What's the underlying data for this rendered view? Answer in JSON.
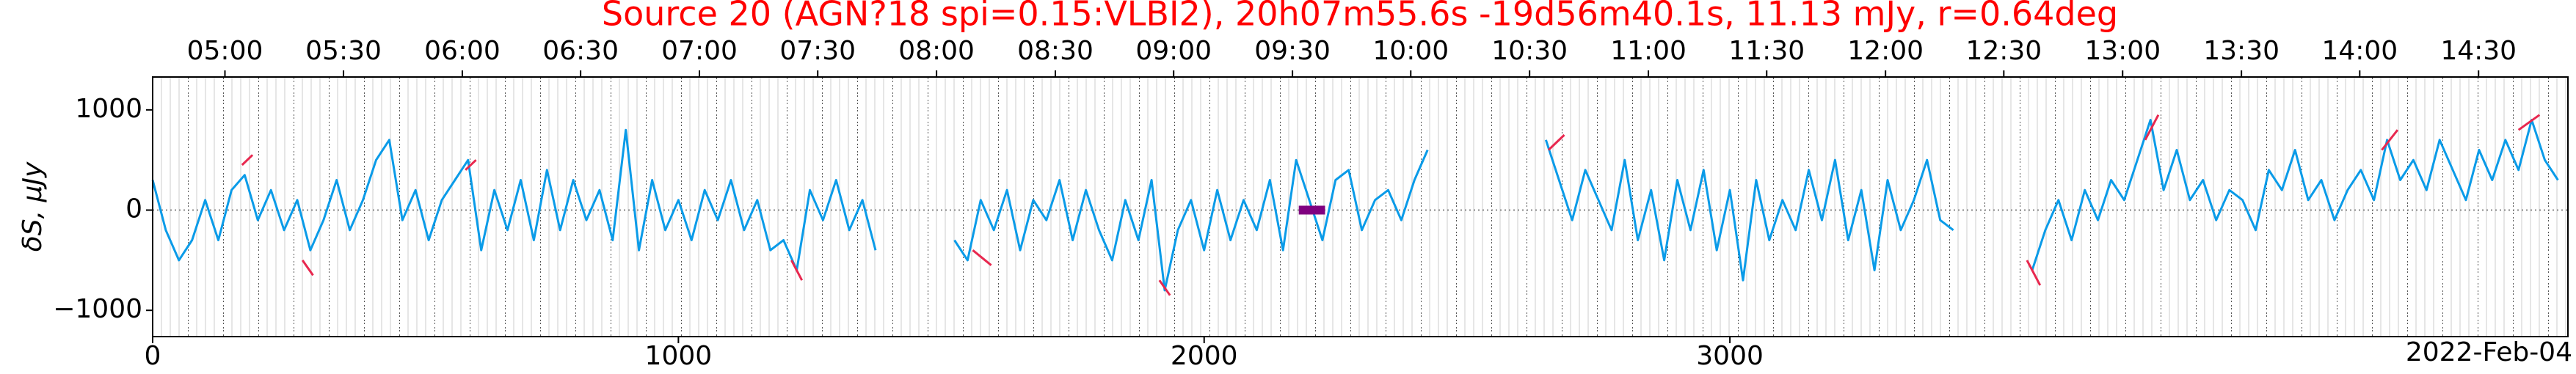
{
  "chart_data": {
    "type": "line",
    "title": "Source 20 (AGN?18 spi=0.15:VLBI2), 20h07m55.6s -19d56m40.1s, 11.13 mJy, r=0.64deg",
    "y_label": "δS, μJy",
    "date_label": "2022-Feb-04",
    "xlim": [
      0,
      4594
    ],
    "xticks": [
      0,
      1000,
      2000,
      3000
    ],
    "x2ticks": [
      {
        "value": 137.5,
        "label": "05:00"
      },
      {
        "value": 363,
        "label": "05:30"
      },
      {
        "value": 589,
        "label": "06:00"
      },
      {
        "value": 814,
        "label": "06:30"
      },
      {
        "value": 1040,
        "label": "07:00"
      },
      {
        "value": 1265,
        "label": "07:30"
      },
      {
        "value": 1491,
        "label": "08:00"
      },
      {
        "value": 1717,
        "label": "08:30"
      },
      {
        "value": 1942,
        "label": "09:00"
      },
      {
        "value": 2168,
        "label": "09:30"
      },
      {
        "value": 2393,
        "label": "10:00"
      },
      {
        "value": 2619,
        "label": "10:30"
      },
      {
        "value": 2845,
        "label": "11:00"
      },
      {
        "value": 3070,
        "label": "11:30"
      },
      {
        "value": 3296,
        "label": "12:00"
      },
      {
        "value": 3521,
        "label": "12:30"
      },
      {
        "value": 3747,
        "label": "13:00"
      },
      {
        "value": 3973,
        "label": "13:30"
      },
      {
        "value": 4198,
        "label": "14:00"
      },
      {
        "value": 4424,
        "label": "14:30"
      }
    ],
    "ylim": [
      -1262,
      1328
    ],
    "yticks": [
      {
        "value": -1000,
        "label": "−1000"
      },
      0,
      1000
    ],
    "series": [
      {
        "color": "#0a9be8",
        "x": [
          0,
          25,
          50,
          75,
          100,
          125,
          150,
          175,
          200,
          225,
          250,
          275,
          300,
          325,
          350,
          375,
          400,
          425,
          450,
          475,
          500,
          525,
          550,
          575,
          600,
          625,
          650,
          675,
          700,
          725,
          750,
          775,
          800,
          825,
          850,
          875,
          900,
          925,
          950,
          975,
          1000,
          1025,
          1050,
          1075,
          1100,
          1125,
          1150,
          1175,
          1200,
          1225,
          1250,
          1275,
          1300,
          1325,
          1350,
          1375,
          1400,
          1425,
          1450,
          1475,
          1500,
          1525,
          1550,
          1575,
          1600,
          1625,
          1650,
          1675,
          1700,
          1725,
          1750,
          1775,
          1800,
          1825,
          1850,
          1875,
          1900,
          1925,
          1950,
          1975,
          2000,
          2025,
          2050,
          2075,
          2100,
          2125,
          2150,
          2175,
          2200,
          2225,
          2250,
          2275,
          2300,
          2325,
          2350,
          2375,
          2400,
          2425,
          2450,
          2475,
          2500,
          2525,
          2550,
          2575,
          2600,
          2625,
          2650,
          2675,
          2700,
          2725,
          2750,
          2775,
          2800,
          2825,
          2850,
          2875,
          2900,
          2925,
          2950,
          2975,
          3000,
          3025,
          3050,
          3075,
          3100,
          3125,
          3150,
          3175,
          3200,
          3225,
          3250,
          3275,
          3300,
          3325,
          3350,
          3375,
          3400,
          3425,
          3450,
          3475,
          3500,
          3525,
          3550,
          3575,
          3600,
          3625,
          3650,
          3675,
          3700,
          3725,
          3750,
          3775,
          3800,
          3825,
          3850,
          3875,
          3900,
          3925,
          3950,
          3975,
          4000,
          4025,
          4050,
          4075,
          4100,
          4125,
          4150,
          4175,
          4200,
          4225,
          4250,
          4275,
          4300,
          4325,
          4350,
          4375,
          4400,
          4425,
          4450,
          4475,
          4500,
          4525,
          4550,
          4575
        ],
        "values": [
          300,
          -200,
          -500,
          -300,
          100,
          -300,
          200,
          350,
          -100,
          200,
          -200,
          100,
          -400,
          -100,
          300,
          -200,
          100,
          500,
          700,
          -100,
          200,
          -300,
          100,
          300,
          500,
          -400,
          200,
          -200,
          300,
          -300,
          400,
          -200,
          300,
          -100,
          200,
          -300,
          800,
          -400,
          300,
          -200,
          100,
          -300,
          200,
          -100,
          300,
          -200,
          100,
          -400,
          -300,
          -600,
          200,
          -100,
          300,
          -200,
          100,
          -400,
          null,
          null,
          null,
          null,
          null,
          -300,
          -500,
          100,
          -200,
          200,
          -400,
          100,
          -100,
          300,
          -300,
          200,
          -200,
          -500,
          100,
          -300,
          300,
          -800,
          -200,
          100,
          -400,
          200,
          -300,
          100,
          -200,
          300,
          -400,
          500,
          100,
          -300,
          300,
          400,
          -200,
          100,
          200,
          -100,
          300,
          600,
          null,
          null,
          null,
          null,
          null,
          null,
          null,
          null,
          700,
          300,
          -100,
          400,
          100,
          -200,
          500,
          -300,
          200,
          -500,
          300,
          -200,
          400,
          -400,
          200,
          -700,
          300,
          -300,
          100,
          -200,
          400,
          -100,
          500,
          -300,
          200,
          -600,
          300,
          -200,
          100,
          500,
          -100,
          -200,
          null,
          null,
          null,
          null,
          null,
          -600,
          -200,
          100,
          -300,
          200,
          -100,
          300,
          100,
          500,
          900,
          200,
          600,
          100,
          300,
          -100,
          200,
          100,
          -200,
          400,
          200,
          600,
          100,
          300,
          -100,
          200,
          400,
          100,
          700,
          300,
          500,
          200,
          700,
          400,
          100,
          600,
          300,
          700,
          400,
          900,
          500,
          300
        ]
      },
      {
        "color": "#e8284f",
        "x": [
          170,
          190,
          195,
          285,
          305,
          310,
          595,
          615,
          620,
          1215,
          1235,
          1240,
          1560,
          1595,
          1600,
          1915,
          1935,
          1940,
          2655,
          2685,
          2690,
          3565,
          3590,
          3595,
          3790,
          3815,
          3820,
          4240,
          4270,
          4275,
          4500,
          4540
        ],
        "values": [
          450,
          550,
          null,
          -500,
          -650,
          null,
          400,
          500,
          null,
          -500,
          -700,
          null,
          -400,
          -550,
          null,
          -700,
          -850,
          null,
          600,
          750,
          null,
          -500,
          -750,
          null,
          700,
          950,
          null,
          600,
          800,
          null,
          800,
          950
        ]
      },
      {
        "color": "#800080",
        "x": [
          2180,
          2230
        ],
        "values": [
          0,
          0
        ]
      }
    ]
  }
}
